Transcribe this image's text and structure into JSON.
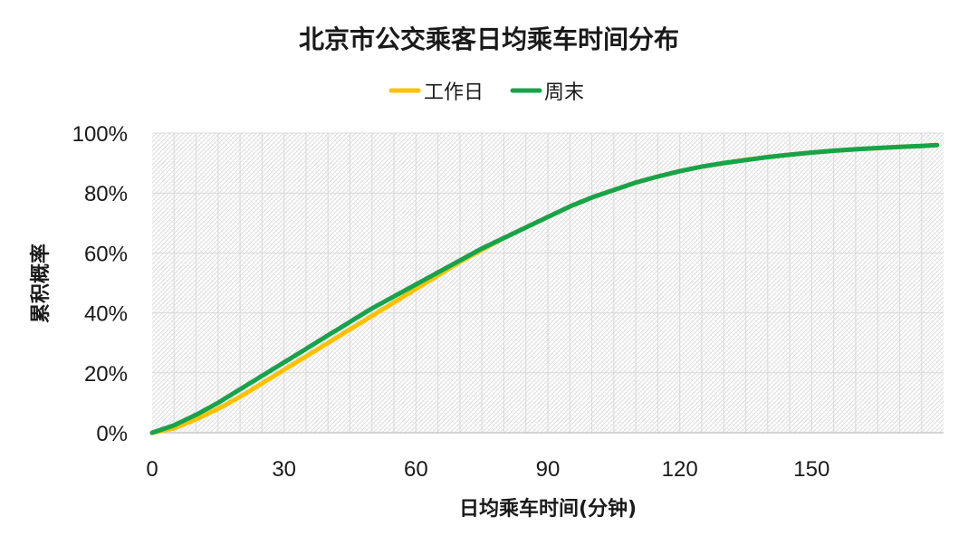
{
  "chart_data": {
    "type": "line",
    "title": "北京市公交乘客日均乘车时间分布",
    "xlabel": "日均乘车时间(分钟)",
    "ylabel": "累积概率",
    "xlim": [
      0,
      180
    ],
    "ylim": [
      0,
      100
    ],
    "x_ticks": [
      0,
      30,
      60,
      90,
      120,
      150
    ],
    "y_ticks": [
      0,
      20,
      40,
      60,
      80,
      100
    ],
    "y_tick_labels": [
      "0%",
      "20%",
      "40%",
      "60%",
      "80%",
      "100%"
    ],
    "legend_position": "top-center",
    "grid": true,
    "series": [
      {
        "name": "工作日",
        "color": "#FFC000",
        "x": [
          0,
          5,
          10,
          15,
          20,
          25,
          30,
          35,
          40,
          45,
          50,
          55,
          60,
          65,
          70,
          75,
          80,
          85,
          90,
          95,
          100,
          105,
          110,
          115,
          120,
          125,
          130,
          135,
          140,
          145,
          150,
          155,
          160,
          165,
          170,
          175,
          180
        ],
        "values": [
          0,
          1.5,
          4.5,
          8,
          12,
          16.5,
          21,
          25.5,
          30,
          34.5,
          39,
          43.5,
          48,
          52.5,
          57,
          61,
          65,
          68.5,
          72,
          75.5,
          78.5,
          81,
          83.5,
          85.5,
          87.3,
          88.8,
          90,
          91.1,
          92,
          92.8,
          93.5,
          94.1,
          94.6,
          95,
          95.4,
          95.7,
          96
        ]
      },
      {
        "name": "周末",
        "color": "#17A34A",
        "x": [
          0,
          5,
          10,
          15,
          20,
          25,
          30,
          35,
          40,
          45,
          50,
          55,
          60,
          65,
          70,
          75,
          80,
          85,
          90,
          95,
          100,
          105,
          110,
          115,
          120,
          125,
          130,
          135,
          140,
          145,
          150,
          155,
          160,
          165,
          170,
          175,
          180
        ],
        "values": [
          0,
          2.5,
          6,
          10,
          14.5,
          19,
          23.5,
          28,
          32.5,
          37,
          41.5,
          45.5,
          49.5,
          53.5,
          57.5,
          61.5,
          65,
          68.5,
          72,
          75.5,
          78.5,
          81,
          83.5,
          85.5,
          87.3,
          88.8,
          90,
          91,
          92,
          92.8,
          93.5,
          94.1,
          94.6,
          95,
          95.4,
          95.7,
          96
        ]
      }
    ]
  }
}
